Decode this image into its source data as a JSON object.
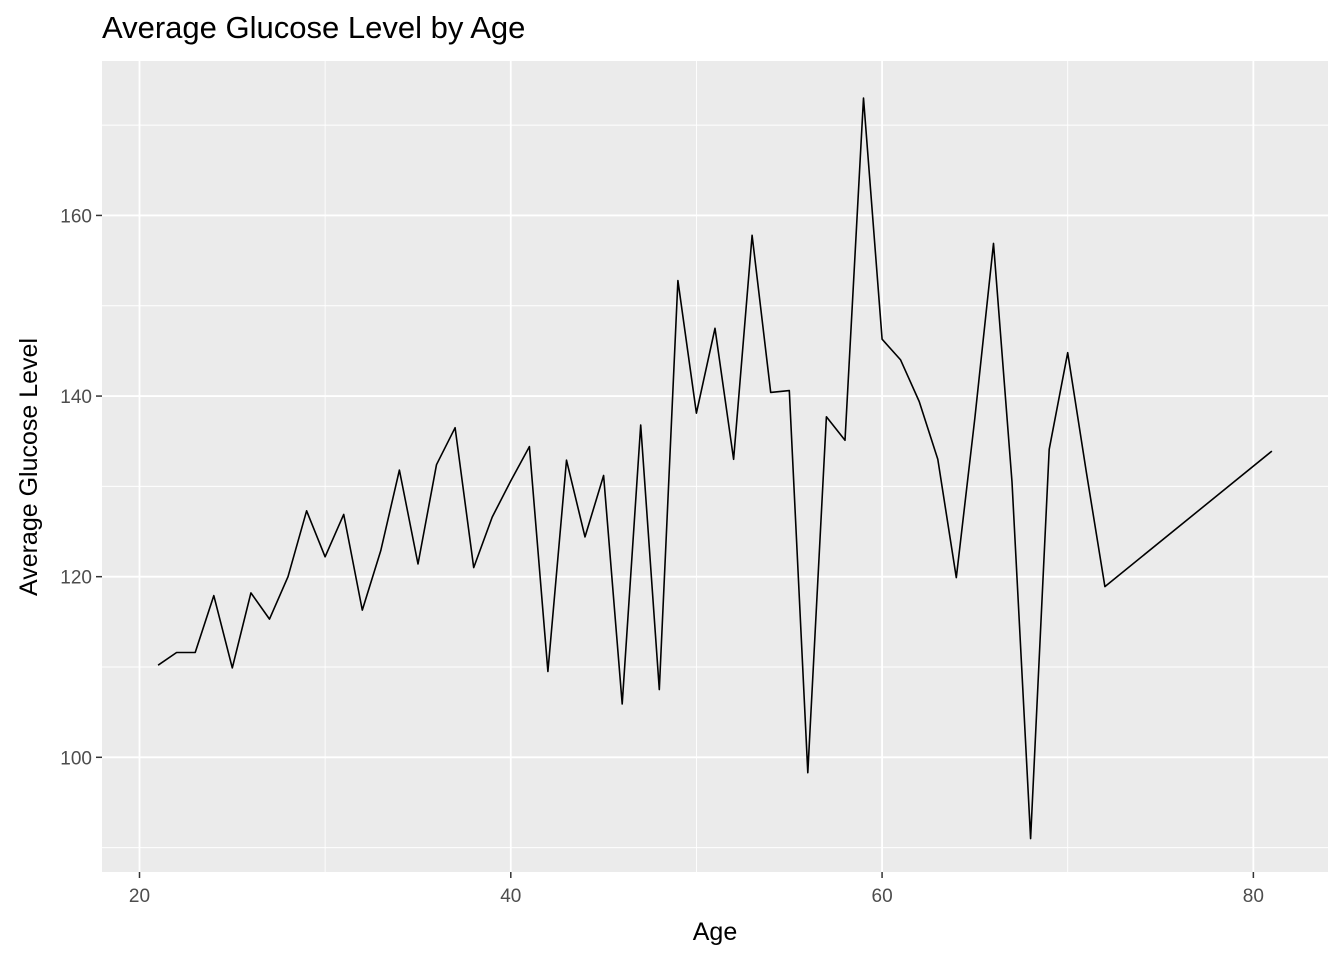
{
  "chart_data": {
    "type": "line",
    "title": "Average Glucose Level by Age",
    "xlabel": "Age",
    "ylabel": "Average Glucose Level",
    "xlim": [
      17.98,
      84.02
    ],
    "ylim": [
      87.3,
      177.1
    ],
    "x_ticks": [
      20,
      40,
      60,
      80
    ],
    "y_ticks": [
      100,
      120,
      140,
      160
    ],
    "grid": true,
    "legend": "none",
    "series": [
      {
        "x": [
          21,
          22,
          23,
          24,
          25,
          26,
          27,
          28,
          29,
          30,
          31,
          32,
          33,
          34,
          35,
          36,
          37,
          38,
          39,
          40,
          41,
          42,
          43,
          44,
          45,
          46,
          47,
          48,
          49,
          50,
          51,
          52,
          53,
          54,
          55,
          56,
          57,
          58,
          59,
          60,
          61,
          62,
          63,
          64,
          65,
          66,
          67,
          68,
          69,
          70,
          71,
          72,
          81
        ],
        "values": [
          110.2,
          111.6,
          111.6,
          117.9,
          109.9,
          118.2,
          115.3,
          120.0,
          127.3,
          122.2,
          126.9,
          116.3,
          122.9,
          131.8,
          121.4,
          132.4,
          136.5,
          121.0,
          126.6,
          130.6,
          134.4,
          109.5,
          132.9,
          124.4,
          131.2,
          105.9,
          136.8,
          107.5,
          152.8,
          138.1,
          147.5,
          133.0,
          157.8,
          140.4,
          140.6,
          98.3,
          137.7,
          135.1,
          173.0,
          146.3,
          144.0,
          139.4,
          133.0,
          119.9,
          137.6,
          156.9,
          130.5,
          91.0,
          134.1,
          144.8,
          131.6,
          118.9,
          133.9
        ]
      }
    ]
  }
}
